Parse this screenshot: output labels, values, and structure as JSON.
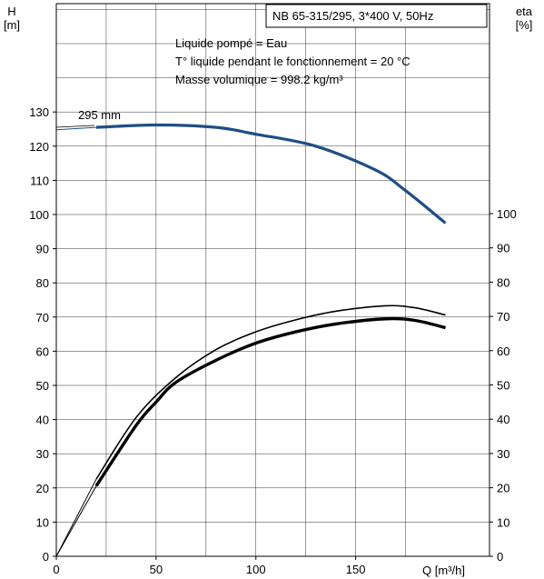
{
  "chart_data": {
    "type": "line",
    "title": "NB 65-315/295, 3*400 V, 50Hz",
    "annotations": [
      "Liquide pompé = Eau",
      "T° liquide pendant le fonctionnement = 20 °C",
      "Masse volumique = 998.2 kg/m³"
    ],
    "left_axis": {
      "label_line1": "H",
      "label_line2": "[m]",
      "range": [
        0,
        130
      ],
      "ticks": [
        "0",
        "10",
        "20",
        "30",
        "40",
        "50",
        "60",
        "70",
        "80",
        "90",
        "100",
        "110",
        "120",
        "130"
      ]
    },
    "right_axis": {
      "label_line1": "eta",
      "label_line2": "[%]",
      "range": [
        0,
        100
      ],
      "ticks": [
        "0",
        "10",
        "20",
        "30",
        "40",
        "50",
        "60",
        "70",
        "80",
        "90",
        "100"
      ]
    },
    "x_axis": {
      "label": "Q [m³/h]",
      "range": [
        0,
        195
      ],
      "ticks": [
        "0",
        "50",
        "100",
        "150"
      ]
    },
    "grid": true,
    "series": [
      {
        "name": "295 mm",
        "axis": "left",
        "x": [
          0,
          20,
          50,
          80,
          100,
          130,
          160,
          175,
          195
        ],
        "y": [
          124.8,
          125.5,
          126.2,
          125.5,
          123.5,
          120.0,
          113.0,
          107.0,
          97.5
        ]
      },
      {
        "axis": "right",
        "x": [
          0,
          20,
          40,
          60,
          80,
          100,
          120,
          140,
          165,
          180,
          195
        ],
        "y": [
          0,
          22.5,
          40.5,
          52.2,
          60.3,
          65.5,
          69.0,
          71.5,
          73.1,
          72.5,
          70.4
        ]
      },
      {
        "axis": "right",
        "x": [
          0,
          20,
          40,
          50,
          60,
          80,
          100,
          120,
          140,
          165,
          180,
          195
        ],
        "y": [
          0,
          20.5,
          38.2,
          45.0,
          50.8,
          57.2,
          62.2,
          65.5,
          67.8,
          69.3,
          68.8,
          66.7
        ]
      }
    ]
  }
}
